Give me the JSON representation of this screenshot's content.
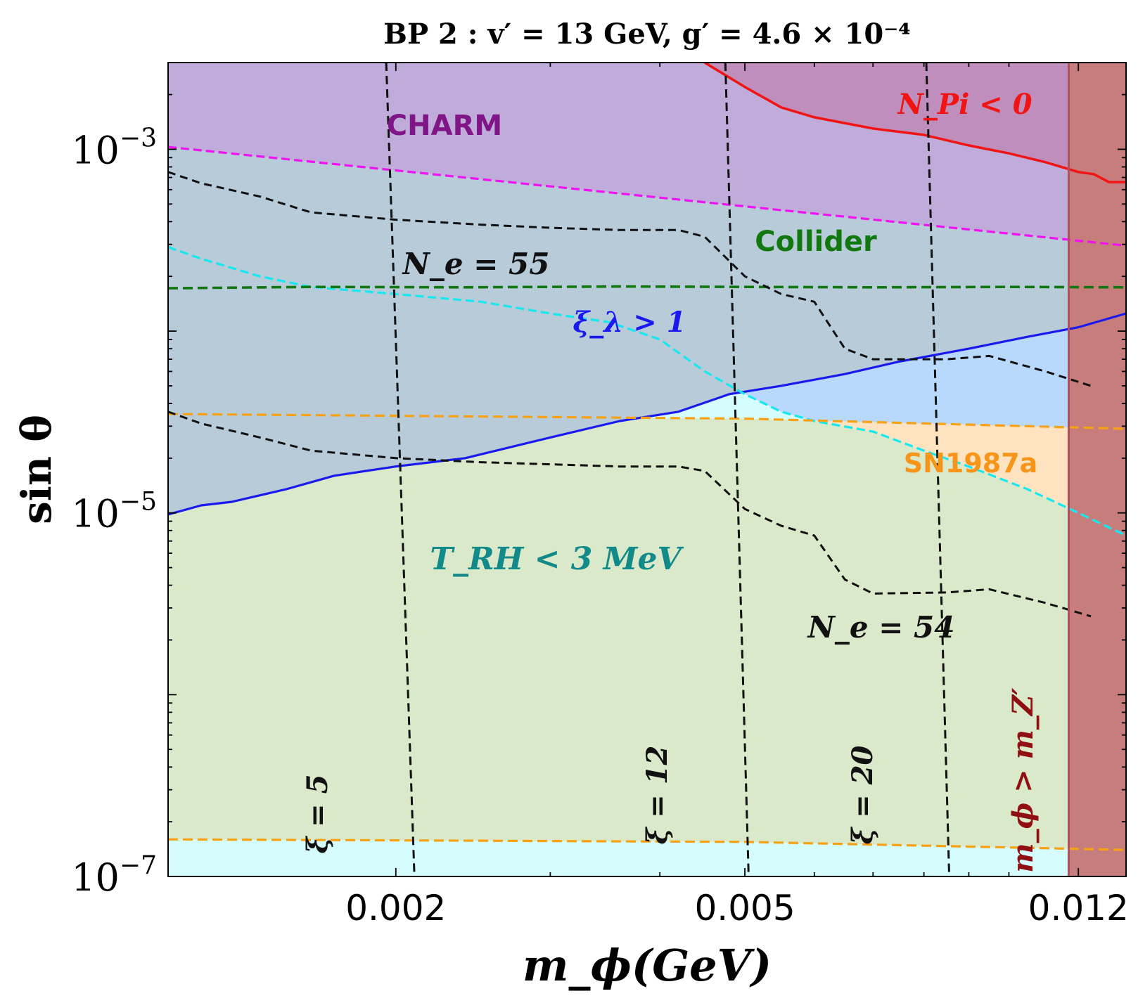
{
  "chart_data": {
    "type": "line",
    "title": "BP 2 :  v′ = 13 GeV, g′ = 4.6 × 10⁻⁴",
    "xlabel": "m_ϕ(GeV)",
    "ylabel": "sin θ",
    "xscale": "log",
    "yscale": "log",
    "xlim": [
      0.0011,
      0.0136
    ],
    "ylim": [
      1e-07,
      0.003
    ],
    "xticks": [
      {
        "value": 0.002,
        "label": "0.002"
      },
      {
        "value": 0.005,
        "label": "0.005"
      },
      {
        "value": 0.012,
        "label": "0.012"
      }
    ],
    "yticks": [
      {
        "value": 0.001,
        "base": "10",
        "exp": "−3"
      },
      {
        "value": 1e-05,
        "base": "10",
        "exp": "−5"
      },
      {
        "value": 1e-07,
        "base": "10",
        "exp": "−7"
      }
    ],
    "colors": {
      "charm_region": "#c0acdb",
      "collider_region": "#b7cbd9",
      "xi_region": "#dad5fb",
      "trh_region": "#b8d8fc",
      "trh_light": "#d5fdfd",
      "sn_region": "#ffe3c0",
      "green_region": "#d9e9c9",
      "npi_region": "#c08ebd",
      "mz_region": "#c77d7c",
      "mz_band": "#ae5061",
      "blue": "#1a1aee",
      "cyan": "#17e8ef",
      "magenta": "#f012f0",
      "green": "#10780f",
      "orange": "#f7a115",
      "red": "#f01414",
      "black": "#111111",
      "darkred": "#8f0f12"
    },
    "series": [
      {
        "name": "xi_lambda_boundary",
        "style": "solid",
        "color": "blue",
        "x": [
          0.0011,
          0.0012,
          0.0013,
          0.0015,
          0.0017,
          0.002,
          0.0024,
          0.003,
          0.0036,
          0.0042,
          0.0048,
          0.0055,
          0.0065,
          0.0075,
          0.009,
          0.0105,
          0.012,
          0.0136
        ],
        "y": [
          9.8e-06,
          1.1e-05,
          1.15e-05,
          1.35e-05,
          1.6e-05,
          1.8e-05,
          2e-05,
          2.6e-05,
          3.2e-05,
          3.6e-05,
          4.5e-05,
          5e-05,
          5.8e-05,
          6.8e-05,
          8e-05,
          9.3e-05,
          0.000105,
          0.000125
        ]
      },
      {
        "name": "trh_boundary",
        "style": "dashed",
        "color": "cyan",
        "x": [
          0.0011,
          0.0012,
          0.0014,
          0.0016,
          0.002,
          0.0025,
          0.003,
          0.0035,
          0.004,
          0.0045,
          0.005,
          0.0055,
          0.006,
          0.007,
          0.008,
          0.009,
          0.0105,
          0.012,
          0.0136
        ],
        "y": [
          0.00029,
          0.00025,
          0.0002,
          0.000175,
          0.00016,
          0.000145,
          0.000125,
          0.000112,
          9e-05,
          6e-05,
          4.5e-05,
          3.6e-05,
          3.2e-05,
          2.8e-05,
          2.2e-05,
          1.8e-05,
          1.35e-05,
          1e-05,
          7.5e-06
        ]
      },
      {
        "name": "collider_limit",
        "style": "dashed",
        "color": "green",
        "x": [
          0.0011,
          0.0016,
          0.0024,
          0.0036,
          0.005,
          0.007,
          0.01,
          0.0136
        ],
        "y": [
          0.000172,
          0.000175,
          0.000174,
          0.000176,
          0.000175,
          0.000174,
          0.000175,
          0.000174
        ]
      },
      {
        "name": "charm_limit",
        "style": "dashed",
        "color": "magenta",
        "x": [
          0.0011,
          0.0136
        ],
        "y": [
          0.00103,
          0.000295
        ]
      },
      {
        "name": "sn_upper",
        "style": "dashed",
        "color": "orange",
        "x": [
          0.0011,
          0.005,
          0.0136
        ],
        "y": [
          3.5e-05,
          3.3e-05,
          2.9e-05
        ]
      },
      {
        "name": "sn_lower",
        "style": "dashed",
        "color": "orange",
        "x": [
          0.0011,
          0.005,
          0.0136
        ],
        "y": [
          1.6e-07,
          1.55e-07,
          1.4e-07
        ]
      },
      {
        "name": "npi_boundary",
        "style": "solid",
        "color": "red",
        "x": [
          0.0045,
          0.005,
          0.0055,
          0.006,
          0.007,
          0.008,
          0.009,
          0.01,
          0.011,
          0.012,
          0.0125,
          0.013,
          0.0136
        ],
        "y": [
          0.003,
          0.0022,
          0.0017,
          0.0015,
          0.0013,
          0.0012,
          0.00105,
          0.00095,
          0.00085,
          0.00075,
          0.00073,
          0.00066,
          0.00066
        ]
      },
      {
        "name": "Ne_55",
        "style": "dashed",
        "color": "black",
        "x": [
          0.0011,
          0.0012,
          0.0014,
          0.0016,
          0.002,
          0.0025,
          0.003,
          0.0036,
          0.0042,
          0.0045,
          0.005,
          0.0055,
          0.006,
          0.0065,
          0.007,
          0.0085,
          0.0095,
          0.011,
          0.0124
        ],
        "y": [
          0.00075,
          0.00065,
          0.00055,
          0.00045,
          0.00041,
          0.000385,
          0.00037,
          0.00036,
          0.00036,
          0.00033,
          0.0002,
          0.00016,
          0.000145,
          8e-05,
          7e-05,
          7e-05,
          7.3e-05,
          6e-05,
          5e-05
        ]
      },
      {
        "name": "Ne_54",
        "style": "dashed",
        "color": "black",
        "x": [
          0.0011,
          0.0012,
          0.0014,
          0.0016,
          0.002,
          0.0025,
          0.003,
          0.0036,
          0.0042,
          0.0045,
          0.005,
          0.0055,
          0.006,
          0.0065,
          0.007,
          0.0085,
          0.0095,
          0.011,
          0.0124
        ],
        "y": [
          3.6e-05,
          3.1e-05,
          2.6e-05,
          2.2e-05,
          2e-05,
          1.9e-05,
          1.85e-05,
          1.8e-05,
          1.8e-05,
          1.7e-05,
          1.05e-05,
          8.5e-06,
          7.5e-06,
          4.3e-06,
          3.6e-06,
          3.65e-06,
          3.8e-06,
          3.2e-06,
          2.7e-06
        ]
      },
      {
        "name": "xi_5",
        "style": "dashed",
        "color": "black",
        "x": [
          0.00195,
          0.0021
        ],
        "y": [
          0.003,
          1e-07
        ]
      },
      {
        "name": "xi_12",
        "style": "dashed",
        "color": "black",
        "x": [
          0.00475,
          0.00505
        ],
        "y": [
          0.003,
          1e-07
        ]
      },
      {
        "name": "xi_20",
        "style": "dashed",
        "color": "black",
        "x": [
          0.00805,
          0.00855
        ],
        "y": [
          0.003,
          1e-07
        ]
      }
    ],
    "mz_boundary_x": 0.0117,
    "annotations": [
      {
        "name": "charm",
        "text": "CHARM"
      },
      {
        "name": "collider",
        "text": "Collider"
      },
      {
        "name": "sn",
        "text": "SN1987a"
      },
      {
        "name": "xi-lambda",
        "text": "ξ_λ > 1"
      },
      {
        "name": "trh",
        "text": "T_RH < 3 MeV"
      },
      {
        "name": "npi",
        "text": "N_Pi < 0"
      },
      {
        "name": "ne55",
        "text": "N_e = 55"
      },
      {
        "name": "ne54",
        "text": "N_e = 54"
      },
      {
        "name": "xi5",
        "text": "ξ = 5"
      },
      {
        "name": "xi12",
        "text": "ξ = 12"
      },
      {
        "name": "xi20",
        "text": "ξ = 20"
      },
      {
        "name": "mphi-mz",
        "text": "m_ϕ > m_Z′"
      }
    ]
  }
}
